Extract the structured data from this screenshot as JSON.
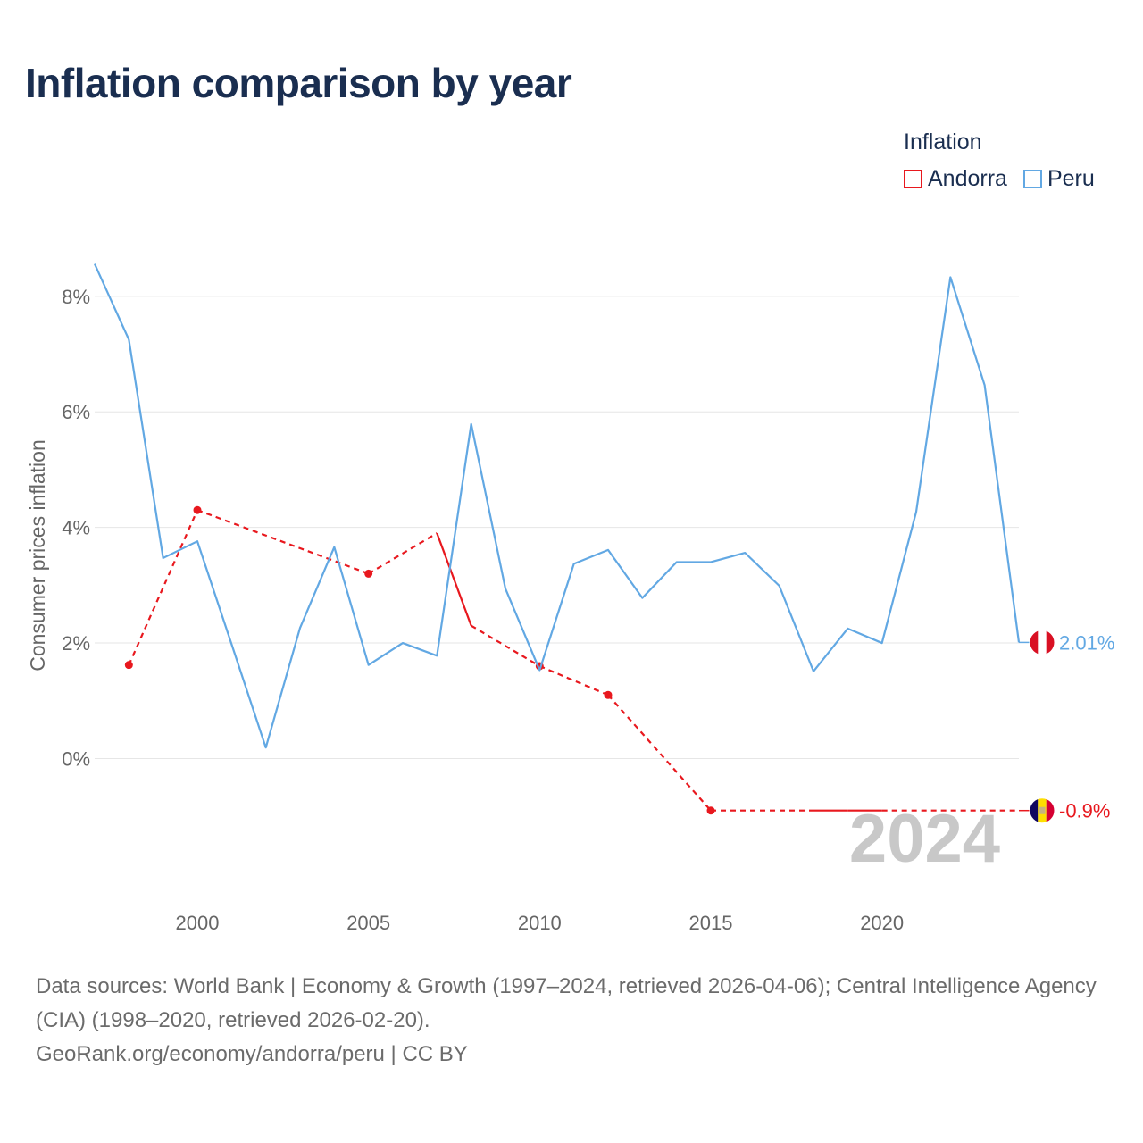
{
  "title": "Inflation comparison by year",
  "legend": {
    "title": "Inflation",
    "items": [
      {
        "label": "Andorra",
        "color": "#e8181e"
      },
      {
        "label": "Peru",
        "color": "#62a8e3"
      }
    ]
  },
  "chart_data": {
    "type": "line",
    "title": "Inflation comparison by year",
    "xlabel": "",
    "ylabel": "Consumer prices inflation",
    "xlim": [
      1997,
      2024
    ],
    "ylim": [
      -1.6,
      8.6
    ],
    "y_ticks": [
      0,
      2,
      4,
      6,
      8
    ],
    "y_tick_labels": [
      "0%",
      "2%",
      "4%",
      "6%",
      "8%"
    ],
    "x_ticks": [
      2000,
      2005,
      2010,
      2015,
      2020
    ],
    "x_tick_labels": [
      "2000",
      "2005",
      "2010",
      "2015",
      "2020"
    ],
    "grid": true,
    "legend_position": "top-right",
    "series": [
      {
        "name": "Andorra",
        "color": "#e8181e",
        "style": "solid-with-dashed-gaps",
        "x": [
          1998,
          2000,
          2005,
          2007,
          2008,
          2010,
          2012,
          2015,
          2018,
          2019,
          2020,
          2024
        ],
        "values": [
          1.62,
          4.3,
          3.2,
          3.9,
          2.3,
          1.6,
          1.1,
          -0.9,
          -0.9,
          -0.9,
          -0.9,
          -0.9
        ]
      },
      {
        "name": "Peru",
        "color": "#62a8e3",
        "style": "solid",
        "x": [
          1997,
          1998,
          1999,
          2000,
          2001,
          2002,
          2003,
          2004,
          2005,
          2006,
          2007,
          2008,
          2009,
          2010,
          2011,
          2012,
          2013,
          2014,
          2015,
          2016,
          2017,
          2018,
          2019,
          2020,
          2021,
          2022,
          2023,
          2024
        ],
        "values": [
          8.56,
          7.25,
          3.47,
          3.76,
          1.98,
          0.19,
          2.26,
          3.66,
          1.62,
          2.0,
          1.78,
          5.79,
          2.94,
          1.53,
          3.37,
          3.61,
          2.78,
          3.4,
          3.4,
          3.56,
          2.99,
          1.51,
          2.25,
          2.0,
          4.27,
          8.33,
          6.46,
          2.01
        ]
      }
    ],
    "end_labels": [
      {
        "series": "Peru",
        "text": "2.01%"
      },
      {
        "series": "Andorra",
        "text": "-0.9%"
      }
    ],
    "year_watermark": "2024"
  },
  "footer": {
    "sources": "Data sources: World Bank | Economy & Growth (1997–2024, retrieved 2026-04-06); Central Intelligence Agency (CIA) (1998–2020, retrieved 2026-02-20).",
    "credit": "GeoRank.org/economy/andorra/peru | CC BY"
  }
}
